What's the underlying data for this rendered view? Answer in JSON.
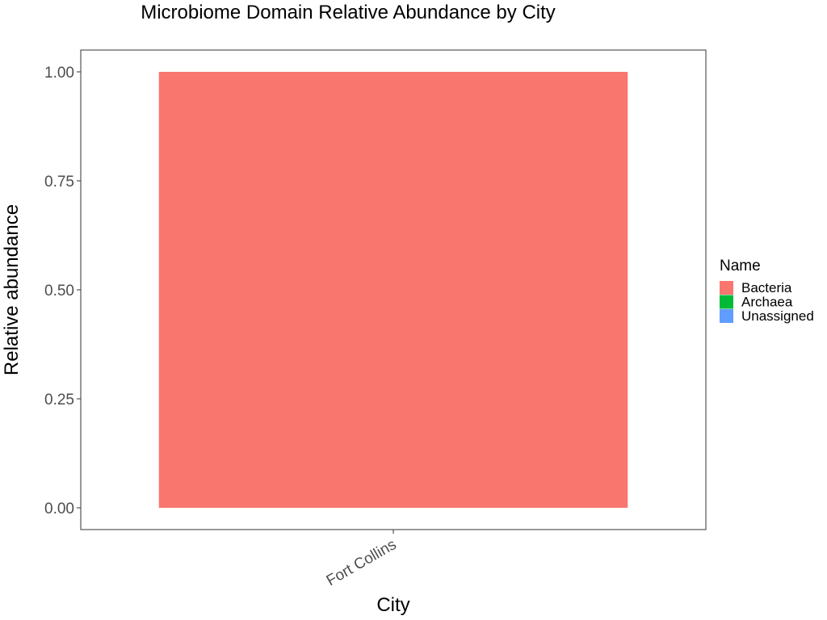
{
  "chart_data": {
    "type": "bar",
    "stacked": true,
    "title": "Microbiome Domain Relative Abundance by City",
    "xlabel": "City",
    "ylabel": "Relative abundance",
    "categories": [
      "Fort Collins"
    ],
    "yticks": [
      "0.00",
      "0.25",
      "0.50",
      "0.75",
      "1.00"
    ],
    "ylim": [
      0,
      1
    ],
    "grid": false,
    "legend": {
      "title": "Name",
      "placement": "right"
    },
    "series": [
      {
        "name": "Bacteria",
        "values": [
          1.0
        ],
        "color": "#F8766D"
      },
      {
        "name": "Archaea",
        "values": [
          0.0
        ],
        "color": "#00BA38"
      },
      {
        "name": "Unassigned",
        "values": [
          0.0
        ],
        "color": "#619CFF"
      }
    ]
  }
}
